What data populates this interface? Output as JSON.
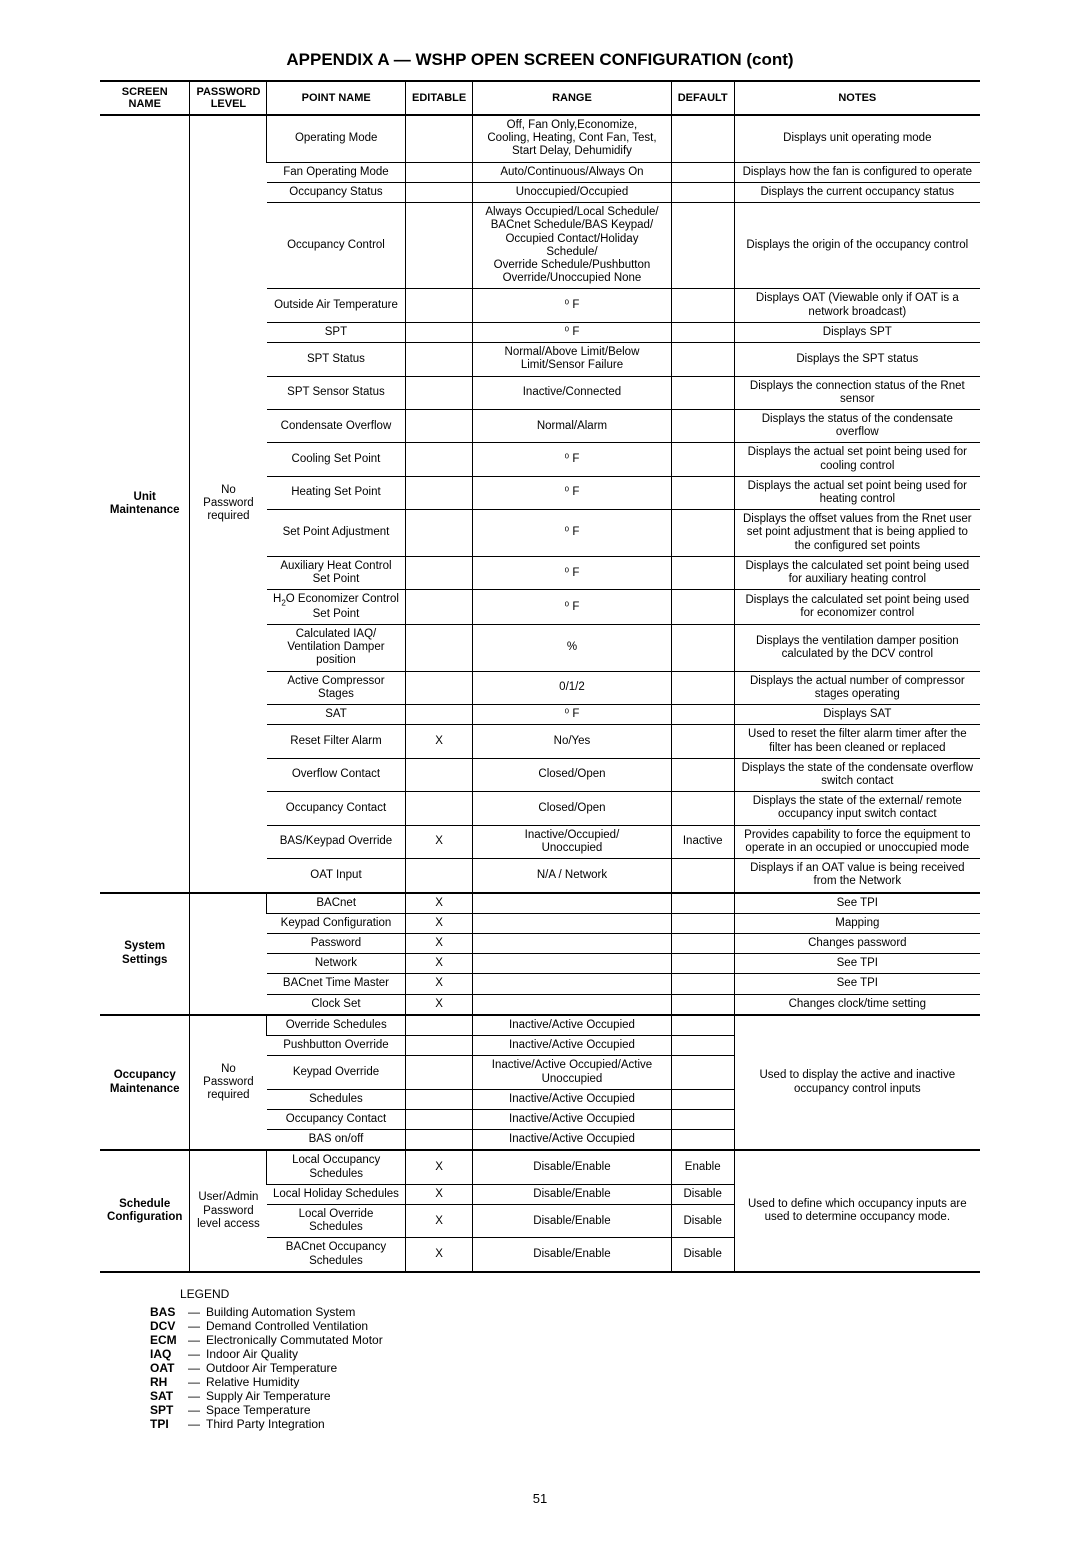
{
  "title": "APPENDIX A — WSHP OPEN SCREEN CONFIGURATION (cont)",
  "headers": {
    "screen": "SCREEN NAME",
    "pw": "PASSWORD LEVEL",
    "point": "POINT NAME",
    "editable": "EDITABLE",
    "range": "RANGE",
    "default": "DEFAULT",
    "notes": "NOTES"
  },
  "col_widths": [
    "90px",
    "75px",
    "140px",
    "60px",
    "200px",
    "60px",
    "250px"
  ],
  "sections": [
    {
      "screen": "Unit\nMaintenance",
      "pw": "No Password required",
      "rows": [
        {
          "point": "Operating Mode",
          "editable": "",
          "range": "Off, Fan Only,Economize,\nCooling, Heating, Cont Fan, Test,\nStart Delay, Dehumidify",
          "default": "",
          "notes": "Displays unit operating mode"
        },
        {
          "point": "Fan Operating Mode",
          "editable": "",
          "range": "Auto/Continuous/Always On",
          "default": "",
          "notes": "Displays how the fan is configured to operate"
        },
        {
          "point": "Occupancy Status",
          "editable": "",
          "range": "Unoccupied/Occupied",
          "default": "",
          "notes": "Displays the current occupancy status"
        },
        {
          "point": "Occupancy Control",
          "editable": "",
          "range": "Always Occupied/Local Schedule/\nBACnet Schedule/BAS Keypad/\nOccupied Contact/Holiday Schedule/\nOverride Schedule/Pushbutton\nOverride/Unoccupied None",
          "default": "",
          "notes": "Displays the origin of the occupancy control"
        },
        {
          "point": "Outside Air Temperature",
          "editable": "",
          "range": "⁰ F",
          "default": "",
          "notes": "Displays OAT (Viewable only if OAT is a network broadcast)"
        },
        {
          "point": "SPT",
          "editable": "",
          "range": "⁰ F",
          "default": "",
          "notes": "Displays SPT"
        },
        {
          "point": "SPT Status",
          "editable": "",
          "range": "Normal/Above Limit/Below Limit/Sensor Failure",
          "default": "",
          "notes": "Displays the SPT status"
        },
        {
          "point": "SPT Sensor Status",
          "editable": "",
          "range": "Inactive/Connected",
          "default": "",
          "notes": "Displays the connection status of the Rnet sensor"
        },
        {
          "point": "Condensate Overflow",
          "editable": "",
          "range": "Normal/Alarm",
          "default": "",
          "notes": "Displays the status of the condensate overflow"
        },
        {
          "point": "Cooling Set Point",
          "editable": "",
          "range": "⁰ F",
          "default": "",
          "notes": "Displays the actual set point being used for cooling control"
        },
        {
          "point": "Heating Set Point",
          "editable": "",
          "range": "⁰ F",
          "default": "",
          "notes": "Displays the actual set point being used for heating control"
        },
        {
          "point": "Set Point Adjustment",
          "editable": "",
          "range": "⁰ F",
          "default": "",
          "notes": "Displays the offset values from the Rnet user set point adjustment that is being applied to the configured set points"
        },
        {
          "point": "Auxiliary Heat Control Set Point",
          "editable": "",
          "range": "⁰ F",
          "default": "",
          "notes": "Displays the calculated set point being used for auxiliary heating control"
        },
        {
          "point": "H₂O Economizer Control Set Point",
          "editable": "",
          "range": "⁰ F",
          "default": "",
          "notes": "Displays the calculated set point being used for economizer control"
        },
        {
          "point": "Calculated IAQ/ Ventilation Damper position",
          "editable": "",
          "range": "%",
          "default": "",
          "notes": "Displays the ventilation damper position calculated by the DCV control"
        },
        {
          "point": "Active Compressor Stages",
          "editable": "",
          "range": "0/1/2",
          "default": "",
          "notes": "Displays the actual number of compressor stages operating"
        },
        {
          "point": "SAT",
          "editable": "",
          "range": "⁰ F",
          "default": "",
          "notes": "Displays SAT"
        },
        {
          "point": "Reset Filter Alarm",
          "editable": "X",
          "range": "No/Yes",
          "default": "",
          "notes": "Used to reset the filter alarm timer after the filter has been cleaned or replaced"
        },
        {
          "point": "Overflow Contact",
          "editable": "",
          "range": "Closed/Open",
          "default": "",
          "notes": "Displays the state of the condensate overflow switch contact"
        },
        {
          "point": "Occupancy Contact",
          "editable": "",
          "range": "Closed/Open",
          "default": "",
          "notes": "Displays the state of the external/ remote occupancy input switch contact"
        },
        {
          "point": "BAS/Keypad Override",
          "editable": "X",
          "range": "Inactive/Occupied/\nUnoccupied",
          "default": "Inactive",
          "notes": "Provides capability to force the equipment to operate in an occupied or unoccupied mode"
        },
        {
          "point": "OAT Input",
          "editable": "",
          "range": "N/A / Network",
          "default": "",
          "notes": "Displays if an OAT value is being received from the Network"
        }
      ]
    },
    {
      "screen": "System Settings",
      "pw": "",
      "rows": [
        {
          "point": "BACnet",
          "editable": "X",
          "range": "",
          "default": "",
          "notes": "See TPI"
        },
        {
          "point": "Keypad Configuration",
          "editable": "X",
          "range": "",
          "default": "",
          "notes": "Mapping"
        },
        {
          "point": "Password",
          "editable": "X",
          "range": "",
          "default": "",
          "notes": "Changes password"
        },
        {
          "point": "Network",
          "editable": "X",
          "range": "",
          "default": "",
          "notes": "See TPI"
        },
        {
          "point": "BACnet Time Master",
          "editable": "X",
          "range": "",
          "default": "",
          "notes": "See TPI"
        },
        {
          "point": "Clock Set",
          "editable": "X",
          "range": "",
          "default": "",
          "notes": "Changes clock/time setting"
        }
      ]
    },
    {
      "screen": "Occupancy\nMaintenance",
      "pw": "No Password required",
      "notes_shared": "Used to display the active and inactive occupancy control inputs",
      "rows": [
        {
          "point": "Override Schedules",
          "editable": "",
          "range": "Inactive/Active Occupied",
          "default": ""
        },
        {
          "point": "Pushbutton Override",
          "editable": "",
          "range": "Inactive/Active Occupied",
          "default": ""
        },
        {
          "point": "Keypad Override",
          "editable": "",
          "range": "Inactive/Active Occupied/Active Unoccupied",
          "default": ""
        },
        {
          "point": "Schedules",
          "editable": "",
          "range": "Inactive/Active Occupied",
          "default": ""
        },
        {
          "point": "Occupancy Contact",
          "editable": "",
          "range": "Inactive/Active Occupied",
          "default": ""
        },
        {
          "point": "BAS on/off",
          "editable": "",
          "range": "Inactive/Active Occupied",
          "default": ""
        }
      ]
    },
    {
      "screen": "Schedule\nConfiguration",
      "pw": "User/Admin Password level access",
      "notes_shared": "Used to define which occupancy inputs are used to determine occupancy mode.",
      "rows": [
        {
          "point": "Local Occupancy Schedules",
          "editable": "X",
          "range": "Disable/Enable",
          "default": "Enable"
        },
        {
          "point": "Local Holiday Schedules",
          "editable": "X",
          "range": "Disable/Enable",
          "default": "Disable"
        },
        {
          "point": "Local Override Schedules",
          "editable": "X",
          "range": "Disable/Enable",
          "default": "Disable"
        },
        {
          "point": "BACnet Occupancy Schedules",
          "editable": "X",
          "range": "Disable/Enable",
          "default": "Disable"
        }
      ]
    }
  ],
  "legend": {
    "title": "LEGEND",
    "items": [
      {
        "abbr": "BAS",
        "desc": "Building Automation System"
      },
      {
        "abbr": "DCV",
        "desc": "Demand Controlled Ventilation"
      },
      {
        "abbr": "ECM",
        "desc": "Electronically Commutated Motor"
      },
      {
        "abbr": "IAQ",
        "desc": "Indoor Air Quality"
      },
      {
        "abbr": "OAT",
        "desc": "Outdoor Air Temperature"
      },
      {
        "abbr": "RH",
        "desc": "Relative Humidity"
      },
      {
        "abbr": "SAT",
        "desc": "Supply Air Temperature"
      },
      {
        "abbr": "SPT",
        "desc": "Space Temperature"
      },
      {
        "abbr": "TPI",
        "desc": "Third Party Integration"
      }
    ]
  },
  "page_number": "51"
}
